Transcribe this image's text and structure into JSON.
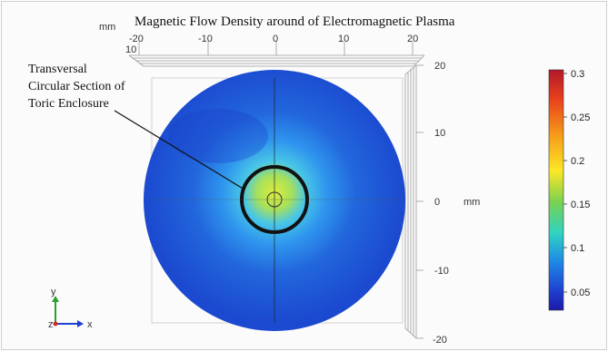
{
  "title": "Magnetic Flow Density around of Electromagnetic Plasma",
  "annotation": {
    "line1": "Transversal",
    "line2": "Circular Section of",
    "line3": "Toric Enclosure"
  },
  "top_axis": {
    "unit": "mm",
    "ticks": [
      "-20",
      "-10",
      "0",
      "10",
      "20"
    ],
    "extra_label": "10"
  },
  "right_axis": {
    "unit": "mm",
    "ticks": [
      "20",
      "10",
      "0",
      "-10",
      "-20"
    ]
  },
  "colorbar": {
    "ticks": [
      "0.3",
      "0.25",
      "0.2",
      "0.15",
      "0.1",
      "0.05"
    ],
    "colors": [
      "#b2182b",
      "#e8401c",
      "#f6a01a",
      "#fde725",
      "#7ad151",
      "#2fd3c3",
      "#1e88e5",
      "#1f3fd1",
      "#1a1aa8"
    ]
  },
  "triad": {
    "y_label": "y",
    "z_label": "z",
    "x_label": "x"
  },
  "colors": {
    "disk_outer": "#1f53d6",
    "disk_mid": "#2f9df0",
    "disk_core": "#d9e83a",
    "ring": "#111111"
  }
}
